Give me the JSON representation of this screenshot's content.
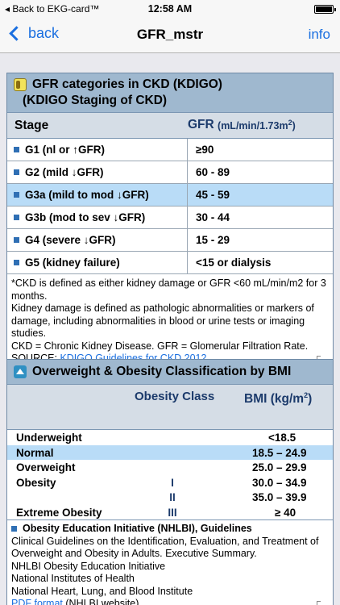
{
  "status": {
    "back_label": "◂ Back to EKG-card™",
    "time": "12:58 AM"
  },
  "nav": {
    "back_label": "back",
    "title": "GFR_mstr",
    "info_label": "info"
  },
  "gfr": {
    "title_line1": "GFR categories in CKD (KDIGO)",
    "title_line2": "(KDIGO Staging of CKD)",
    "col_stage": "Stage",
    "col_gfr": "GFR",
    "col_gfr_unit": "(mL/min/1.73m",
    "col_gfr_unit_sup": "2",
    "col_gfr_unit_end": ")",
    "rows": [
      {
        "stage": "G1 (nl or ↑GFR)",
        "value": "≥90"
      },
      {
        "stage": "G2 (mild ↓GFR)",
        "value": "60 - 89"
      },
      {
        "stage": "G3a (mild to mod ↓GFR)",
        "value": "45 - 59"
      },
      {
        "stage": "G3b (mod to sev ↓GFR)",
        "value": "30 - 44"
      },
      {
        "stage": "G4 (severe ↓GFR)",
        "value": "15 - 29"
      },
      {
        "stage": "G5 (kidney failure)",
        "value": "<15 or dialysis"
      }
    ],
    "note1": "*CKD is defined as either kidney damage or GFR <60 mL/min/m2 for 3 months.",
    "note2": "Kidney damage is defined as pathologic abnormalities or markers of damage, including abnormalities in blood or urine tests or imaging studies.",
    "note3": "CKD = Chronic Kidney Disease. GFR = Glomerular Filtration Rate.",
    "source_prefix": "SOURCE: ",
    "source_link": "KDIGO Guidelines for CKD 2012"
  },
  "bmi": {
    "title": "Overweight & Obesity Classification by BMI",
    "col_class": "Obesity Class",
    "col_bmi": "BMI (kg/m",
    "col_bmi_sup": "2",
    "col_bmi_end": ")",
    "rows": [
      {
        "label": "Underweight",
        "class": "",
        "value": "<18.5"
      },
      {
        "label": "Normal",
        "class": "",
        "value": "18.5 – 24.9"
      },
      {
        "label": "Overweight",
        "class": "",
        "value": "25.0 – 29.9"
      },
      {
        "label": "Obesity",
        "class": "I",
        "value": "30.0 – 34.9"
      },
      {
        "label": "",
        "class": "II",
        "value": "35.0 – 39.9"
      },
      {
        "label": "Extreme Obesity",
        "class": "III",
        "value": "≥ 40"
      }
    ],
    "ref_title": "Obesity Education Initiative (NHLBI), Guidelines",
    "ref_line1": "Clinical Guidelines on the Identification, Evaluation, and Treatment of Overweight and Obesity in Adults. Executive Summary.",
    "ref_line2": "NHLBI Obesity Education Initiative",
    "ref_line3": "National Institutes of Health",
    "ref_line4": "National Heart, Lung, and Blood Institute",
    "ref_link": "PDF format",
    "ref_link_suffix": " (NHLBI website)"
  }
}
